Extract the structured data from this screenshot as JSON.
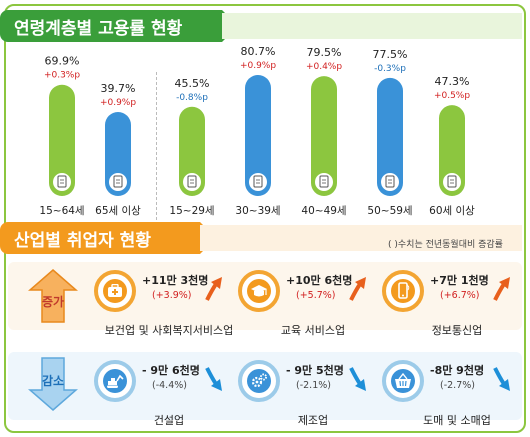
{
  "age_section": {
    "title": "연령계층별 고용률 현황"
  },
  "industry_section": {
    "title": "산업별 취업자 현황",
    "note": "( )수치는 전년동월대비 증감률"
  },
  "chart_data": {
    "type": "bar",
    "categories": [
      "15~64세",
      "65세 이상",
      "15~29세",
      "30~39세",
      "40~49세",
      "50~59세",
      "60세 이상"
    ],
    "values": [
      69.9,
      39.7,
      45.5,
      80.7,
      79.5,
      77.5,
      47.3
    ],
    "value_labels": [
      "69.9%",
      "39.7%",
      "45.5%",
      "80.7%",
      "79.5%",
      "77.5%",
      "47.3%"
    ],
    "changes": [
      "+0.3%p",
      "+0.9%p",
      "-0.8%p",
      "+0.9%p",
      "+0.4%p",
      "-0.3%p",
      "+0.5%p"
    ],
    "bar_colors": [
      "#8cc63f",
      "#3a92d8",
      "#8cc63f",
      "#3a92d8",
      "#8cc63f",
      "#3a92d8",
      "#8cc63f"
    ],
    "change_colors": [
      "#d11f1f",
      "#d11f1f",
      "#1d6fb8",
      "#d11f1f",
      "#d11f1f",
      "#1d6fb8",
      "#d11f1f"
    ],
    "ylim": [
      0,
      100
    ],
    "grid": false
  },
  "industries": {
    "increase_label": "증가",
    "decrease_label": "감소",
    "increase": [
      {
        "name": "보건업 및 사회복지서비스업",
        "value": "+11만 3천명",
        "rate": "(+3.9%)",
        "icon": "first-aid-kit-icon"
      },
      {
        "name": "교육 서비스업",
        "value": "+10만 6천명",
        "rate": "(+5.7%)",
        "icon": "graduation-cap-icon"
      },
      {
        "name": "정보통신업",
        "value": "+7만 1천명",
        "rate": "(+6.7%)",
        "icon": "smartphone-icon"
      }
    ],
    "decrease": [
      {
        "name": "건설업",
        "value": "- 9만 6천명",
        "rate": "(-4.4%)",
        "icon": "excavator-icon"
      },
      {
        "name": "제조업",
        "value": "- 9만 5천명",
        "rate": "(-2.1%)",
        "icon": "gears-icon"
      },
      {
        "name": "도매 및 소매업",
        "value": "-8만 9천명",
        "rate": "(-2.7%)",
        "icon": "shopping-basket-icon"
      }
    ]
  },
  "colors": {
    "green": "#8cc63f",
    "blue": "#3a92d8",
    "orange": "#f39a1e",
    "dark_green": "#3a9e3a"
  }
}
